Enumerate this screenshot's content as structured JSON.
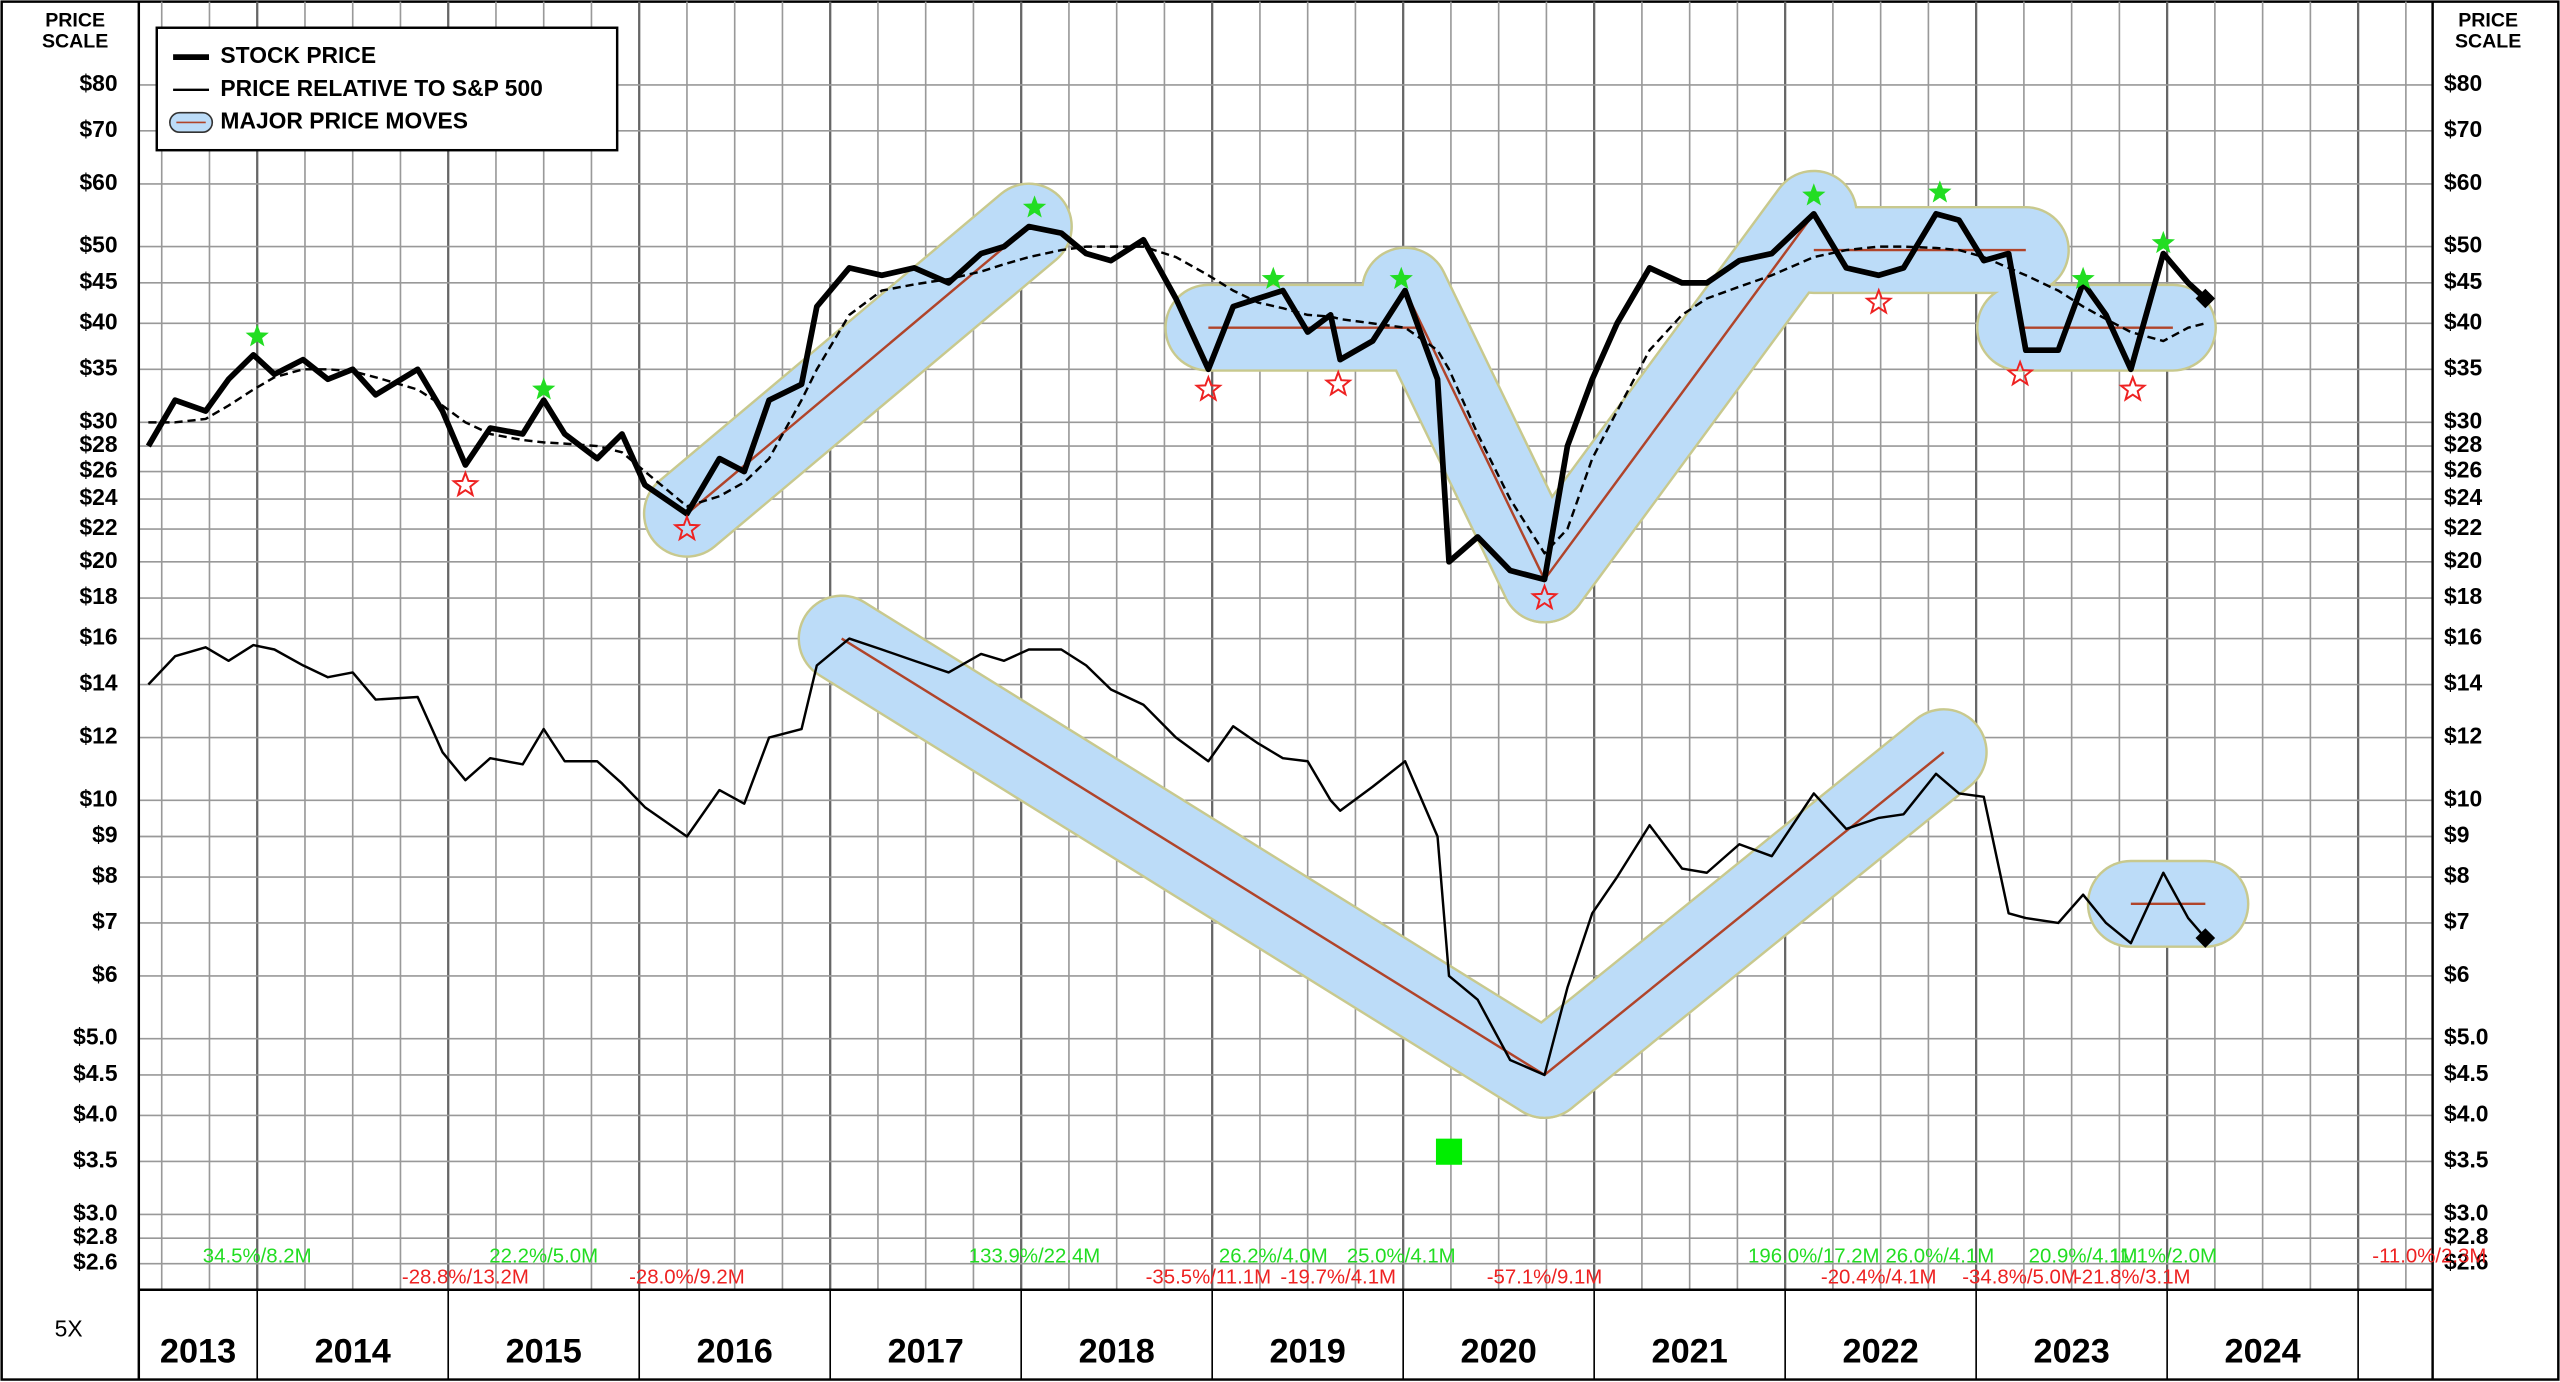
{
  "chart_data": {
    "type": "line",
    "price_scale_label": [
      "PRICE",
      "SCALE"
    ],
    "multiplier_label": "5X",
    "log_scale": true,
    "grid": true,
    "legend": "upper left",
    "ylim": [
      2.41,
      100
    ],
    "yticks": [
      {
        "value": 80,
        "label": "$80"
      },
      {
        "value": 70,
        "label": "$70"
      },
      {
        "value": 60,
        "label": "$60"
      },
      {
        "value": 50,
        "label": "$50"
      },
      {
        "value": 45,
        "label": "$45"
      },
      {
        "value": 40,
        "label": "$40"
      },
      {
        "value": 35,
        "label": "$35"
      },
      {
        "value": 30,
        "label": "$30"
      },
      {
        "value": 28,
        "label": "$28"
      },
      {
        "value": 26,
        "label": "$26"
      },
      {
        "value": 24,
        "label": "$24"
      },
      {
        "value": 22,
        "label": "$22"
      },
      {
        "value": 20,
        "label": "$20"
      },
      {
        "value": 18,
        "label": "$18"
      },
      {
        "value": 16,
        "label": "$16"
      },
      {
        "value": 14,
        "label": "$14"
      },
      {
        "value": 12,
        "label": "$12"
      },
      {
        "value": 10,
        "label": "$10"
      },
      {
        "value": 9,
        "label": "$9"
      },
      {
        "value": 8,
        "label": "$8"
      },
      {
        "value": 7,
        "label": "$7"
      },
      {
        "value": 6,
        "label": "$6"
      },
      {
        "value": 5,
        "label": "$5.0"
      },
      {
        "value": 4.5,
        "label": "$4.5"
      },
      {
        "value": 4,
        "label": "$4.0"
      },
      {
        "value": 3.5,
        "label": "$3.5"
      },
      {
        "value": 3,
        "label": "$3.0"
      },
      {
        "value": 2.8,
        "label": "$2.8"
      },
      {
        "value": 2.6,
        "label": "$2.6"
      }
    ],
    "xlim": [
      2013.38,
      2025.39
    ],
    "year_labels": [
      "2013",
      "2014",
      "2015",
      "2016",
      "2017",
      "2018",
      "2019",
      "2020",
      "2021",
      "2022",
      "2023",
      "2024"
    ],
    "x": [
      2013.43,
      2013.57,
      2013.73,
      2013.85,
      2013.98,
      2014.09,
      2014.24,
      2014.37,
      2014.5,
      2014.62,
      2014.84,
      2014.97,
      2015.09,
      2015.22,
      2015.39,
      2015.5,
      2015.61,
      2015.78,
      2015.91,
      2016.03,
      2016.25,
      2016.42,
      2016.55,
      2016.68,
      2016.85,
      2016.93,
      2017.1,
      2017.27,
      2017.44,
      2017.62,
      2017.79,
      2017.91,
      2018.04,
      2018.21,
      2018.34,
      2018.47,
      2018.64,
      2018.81,
      2018.98,
      2019.11,
      2019.24,
      2019.37,
      2019.5,
      2019.62,
      2019.67,
      2019.84,
      2020.01,
      2020.18,
      2020.24,
      2020.39,
      2020.56,
      2020.74,
      2020.86,
      2020.99,
      2021.12,
      2021.29,
      2021.46,
      2021.59,
      2021.76,
      2021.93,
      2022.15,
      2022.32,
      2022.49,
      2022.62,
      2022.79,
      2022.91,
      2023.04,
      2023.17,
      2023.26,
      2023.43,
      2023.56,
      2023.68,
      2023.81,
      2023.98,
      2024.11,
      2024.2
    ],
    "series": [
      {
        "name": "STOCK PRICE",
        "color": "#000000",
        "width": 3.5,
        "end_marker": true,
        "values": [
          28,
          32,
          31,
          34,
          36.5,
          34.5,
          36,
          34,
          35,
          32.5,
          35,
          31,
          26.5,
          29.5,
          29,
          32,
          29,
          27,
          29,
          25,
          23,
          27,
          26,
          32,
          33.5,
          42,
          47,
          46,
          47,
          45,
          49,
          50,
          53,
          52,
          49,
          48,
          51,
          43,
          35,
          42,
          43,
          44,
          39,
          41,
          36,
          38,
          44,
          34,
          20,
          21.5,
          19.5,
          19,
          28,
          34,
          40,
          47,
          45,
          45,
          48,
          49,
          55,
          47,
          46,
          47,
          55,
          54,
          48,
          49,
          37,
          37,
          45,
          41,
          35,
          49,
          45,
          43
        ]
      },
      {
        "name": "PRICE RELATIVE TO S&P 500",
        "color": "#000000",
        "width": 1.5,
        "end_marker": true,
        "values": [
          14,
          15.2,
          15.6,
          15,
          15.7,
          15.5,
          14.8,
          14.3,
          14.5,
          13.4,
          13.5,
          11.5,
          10.6,
          11.3,
          11.1,
          12.3,
          11.2,
          11.2,
          10.5,
          9.8,
          9,
          10.3,
          9.9,
          12,
          12.3,
          14.8,
          16,
          15.5,
          15,
          14.5,
          15.3,
          15,
          15.5,
          15.5,
          14.8,
          13.8,
          13.2,
          12,
          11.2,
          12.4,
          11.8,
          11.3,
          11.2,
          10,
          9.7,
          10.4,
          11.2,
          9,
          6,
          5.6,
          4.7,
          4.5,
          5.8,
          7.2,
          8,
          9.3,
          8.2,
          8.1,
          8.8,
          8.5,
          10.2,
          9.2,
          9.5,
          9.6,
          10.8,
          10.2,
          10.1,
          7.2,
          7.1,
          7,
          7.6,
          7,
          6.6,
          8.1,
          7.1,
          6.7
        ]
      },
      {
        "color": "#000000",
        "width": 1.5,
        "dashed": true,
        "values": [
          30,
          30,
          30.3,
          31.5,
          33,
          34.2,
          35,
          35,
          34.8,
          34.2,
          33,
          31.5,
          30,
          29,
          28.5,
          28.3,
          28.2,
          28,
          27.5,
          26,
          23.5,
          24.2,
          25.2,
          27,
          32,
          35,
          41,
          44,
          44.8,
          45.5,
          46.5,
          47.5,
          48.5,
          49.5,
          50,
          50,
          50,
          48.5,
          46,
          44,
          42.5,
          41.8,
          41,
          40.8,
          40.5,
          40,
          39.5,
          37,
          35,
          29,
          24,
          20.5,
          22,
          27,
          31,
          37,
          41,
          43,
          44.5,
          46,
          48.5,
          49.5,
          50,
          50,
          49.8,
          49.5,
          48.5,
          47,
          46,
          44,
          42,
          40.5,
          39,
          38,
          39.5,
          40
        ]
      }
    ],
    "major_moves": {
      "name": "MAJOR PRICE MOVES",
      "color": "#bcdcf8",
      "edge_color": "#c8c98e",
      "line_color": "#b0442a",
      "items": [
        {
          "x": [
            2016.25,
            2018.04
          ],
          "values": [
            23,
            53
          ]
        },
        {
          "x": [
            2018.98,
            2020.09
          ],
          "values": [
            39.5,
            39.5
          ]
        },
        {
          "x": [
            2020.01,
            2020.74
          ],
          "values": [
            44,
            19
          ]
        },
        {
          "x": [
            2020.74,
            2022.15
          ],
          "values": [
            19,
            55
          ]
        },
        {
          "x": [
            2022.15,
            2023.26
          ],
          "values": [
            49.5,
            49.5
          ]
        },
        {
          "x": [
            2023.23,
            2024.03
          ],
          "values": [
            39.5,
            39.5
          ]
        },
        {
          "x": [
            2017.06,
            2020.74
          ],
          "values": [
            16,
            4.5
          ]
        },
        {
          "x": [
            2020.74,
            2022.83
          ],
          "values": [
            4.5,
            11.5
          ]
        },
        {
          "x": [
            2023.81,
            2024.2
          ],
          "values": [
            7.4,
            7.4
          ]
        }
      ]
    },
    "peaks": {
      "color": "#22dd22",
      "items": [
        {
          "x": 2014.0,
          "value": 38.5,
          "label": "34.5%/8.2M"
        },
        {
          "x": 2015.5,
          "value": 33,
          "label": "22.2%/5.0M"
        },
        {
          "x": 2018.07,
          "value": 56,
          "label": "133.9%/22.4M"
        },
        {
          "x": 2019.32,
          "value": 45.5,
          "label": "26.2%/4.0M"
        },
        {
          "x": 2019.99,
          "value": 45.5,
          "label": "25.0%/4.1M"
        },
        {
          "x": 2022.15,
          "value": 58,
          "label": "196.0%/17.2M"
        },
        {
          "x": 2022.81,
          "value": 58.5,
          "label": "26.0%/4.1M"
        },
        {
          "x": 2023.56,
          "value": 45.5,
          "label": "20.9%/4.1M"
        },
        {
          "x": 2023.98,
          "value": 50.5,
          "label": "11.1%/2.0M"
        }
      ]
    },
    "troughs": {
      "color": "#ee2222",
      "items": [
        {
          "x": 2015.09,
          "value": 25,
          "label": "-28.8%/13.2M"
        },
        {
          "x": 2016.25,
          "value": 22,
          "label": "-28.0%/9.2M"
        },
        {
          "x": 2018.98,
          "value": 33,
          "label": "-35.5%/11.1M"
        },
        {
          "x": 2019.66,
          "value": 33.5,
          "label": "-19.7%/4.1M"
        },
        {
          "x": 2020.74,
          "value": 18,
          "label": "-57.1%/9.1M"
        },
        {
          "x": 2022.49,
          "value": 42.5,
          "label": "-20.4%/4.1M"
        },
        {
          "x": 2023.23,
          "value": 34.5,
          "label": "-34.8%/5.0M"
        },
        {
          "x": 2023.82,
          "value": 33,
          "label": "-21.8%/3.1M"
        }
      ]
    },
    "last_move_label": "-11.0%/2.3M",
    "signal": {
      "x": 2020.24,
      "value": 3.6,
      "color": "#00ee00"
    }
  }
}
